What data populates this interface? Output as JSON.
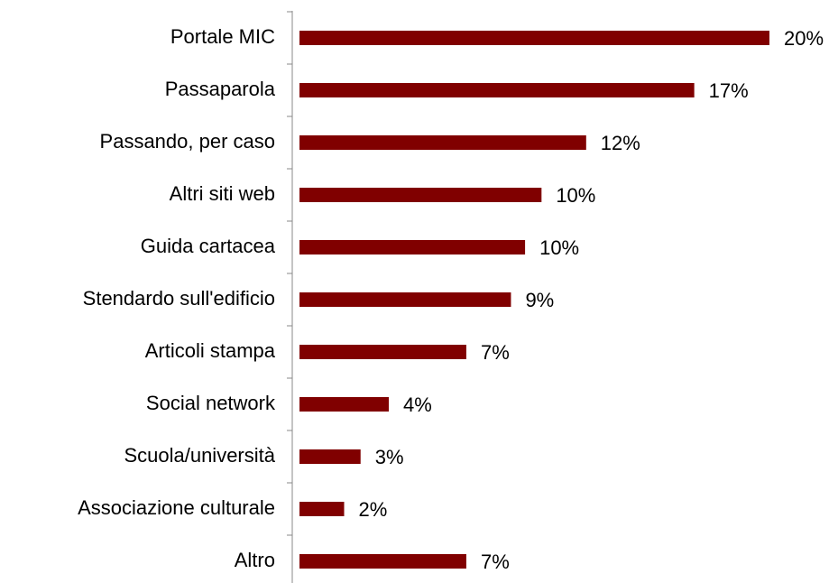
{
  "chart_data": {
    "type": "bar",
    "orientation": "horizontal",
    "categories": [
      "Portale MIC",
      "Passaparola",
      "Passando, per caso",
      "Altri siti web",
      "Guida cartacea",
      "Stendardo sull'edificio",
      "Articoli stampa",
      "Social network",
      "Scuola/università",
      "Associazione culturale",
      "Altro"
    ],
    "values": [
      20,
      16.8,
      12.2,
      10.3,
      9.6,
      9.0,
      7.1,
      3.8,
      2.6,
      1.9,
      7.1
    ],
    "value_labels": [
      "20%",
      "17%",
      "12%",
      "10%",
      "10%",
      "9%",
      "7%",
      "4%",
      "3%",
      "2%",
      "7%"
    ],
    "color": "#800000",
    "xlim": [
      0,
      20
    ]
  }
}
